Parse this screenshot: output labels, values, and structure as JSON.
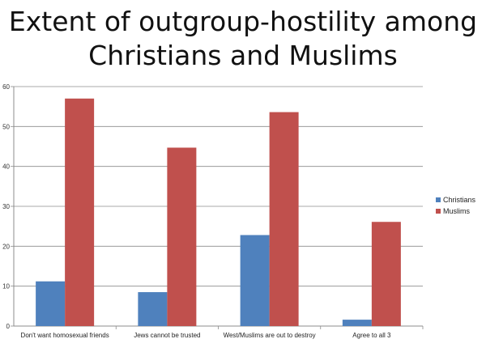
{
  "chart_data": {
    "type": "bar",
    "title_lines": [
      "Extent of outgroup-hostility among",
      "Christians and Muslims"
    ],
    "categories": [
      "Don't want homosexual friends",
      "Jews cannot be trusted",
      "West/Muslims are out to destroy",
      "Agree to all 3"
    ],
    "series": [
      {
        "name": "Christians",
        "color": "#4f81bd",
        "values": [
          11.2,
          8.5,
          22.8,
          1.6
        ]
      },
      {
        "name": "Muslims",
        "color": "#c0504d",
        "values": [
          57,
          44.7,
          53.6,
          26.1
        ]
      }
    ],
    "ylim": [
      0,
      60
    ],
    "yticks": [
      0,
      10,
      20,
      30,
      40,
      50,
      60
    ],
    "grid": true,
    "legend_position": "right"
  }
}
